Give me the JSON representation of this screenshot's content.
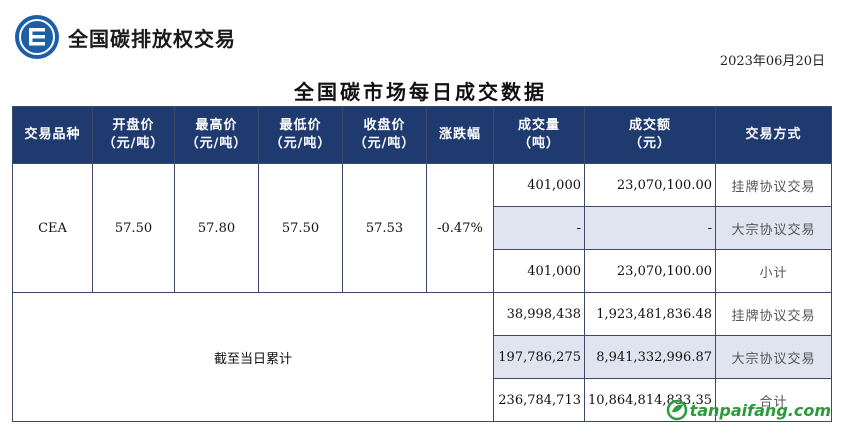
{
  "brand": {
    "name": "全国碳排放权交易"
  },
  "date": "2023年06月20日",
  "title": "全国碳市场每日成交数据",
  "table": {
    "headers": [
      [
        "交易品种"
      ],
      [
        "开盘价",
        "（元/吨）"
      ],
      [
        "最高价",
        "（元/吨）"
      ],
      [
        "最低价",
        "（元/吨）"
      ],
      [
        "收盘价",
        "（元/吨）"
      ],
      [
        "涨跌幅"
      ],
      [
        "成交量",
        "（吨）"
      ],
      [
        "成交额",
        "（元）"
      ],
      [
        "交易方式"
      ]
    ],
    "daily": {
      "product": "CEA",
      "open": "57.50",
      "high": "57.80",
      "low": "57.50",
      "close": "57.53",
      "change": "-0.47%",
      "rows": [
        {
          "volume": "401,000",
          "amount": "23,070,100.00",
          "method": "挂牌协议交易"
        },
        {
          "volume": "-",
          "amount": "-",
          "method": "大宗协议交易"
        },
        {
          "volume": "401,000",
          "amount": "23,070,100.00",
          "method": "小计"
        }
      ]
    },
    "cumulative": {
      "label": "截至当日累计",
      "rows": [
        {
          "volume": "38,998,438",
          "amount": "1,923,481,836.48",
          "method": "挂牌协议交易"
        },
        {
          "volume": "197,786,275",
          "amount": "8,941,332,996.87",
          "method": "大宗协议交易"
        },
        {
          "volume": "236,784,713",
          "amount": "10,864,814,833.35",
          "method": "合计"
        }
      ]
    }
  },
  "watermark": {
    "text": "tanpaifang.com",
    "icon": "leaf-globe-icon",
    "color": "#2b9a3a"
  },
  "colors": {
    "header_bg": "#1f3a6e",
    "highlight_bg": "#dfe4f0",
    "logo": "#1c5fa8"
  }
}
